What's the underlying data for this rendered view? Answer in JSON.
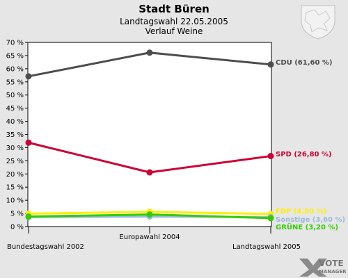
{
  "header": {
    "title": "Stadt Büren",
    "subtitle": "Landtagswahl 22.05.2005",
    "subtitle2": "Verlauf Weine"
  },
  "logo": {
    "line1": "VOTE",
    "line2": "MANAGER"
  },
  "chart_data": {
    "type": "line",
    "title": "Stadt Büren",
    "categories": [
      "Bundestagswahl 2002",
      "Europawahl 2004",
      "Landtagswahl 2005"
    ],
    "ylim": [
      0,
      70
    ],
    "ytick_step": 5,
    "ytick_suffix": " %",
    "grid": false,
    "series": [
      {
        "name": "CDU",
        "values": [
          57.1,
          66.1,
          61.6
        ],
        "color": "#4d4d4d",
        "label": "CDU (61,60 %)"
      },
      {
        "name": "SPD",
        "values": [
          31.9,
          20.6,
          26.8
        ],
        "color": "#cc0033",
        "label": "SPD (26,80 %)"
      },
      {
        "name": "FDP",
        "values": [
          4.9,
          5.6,
          4.8
        ],
        "color": "#ffee00",
        "label": "FDP (4,80 %)"
      },
      {
        "name": "Sonstige",
        "values": [
          3.6,
          3.8,
          3.6
        ],
        "color": "#99bbdd",
        "label": "Sonstige (3,60 %)"
      },
      {
        "name": "GRÜNE",
        "values": [
          3.8,
          4.6,
          3.2
        ],
        "color": "#33cc00",
        "label": "GRÜNE (3,20 %)"
      }
    ]
  }
}
